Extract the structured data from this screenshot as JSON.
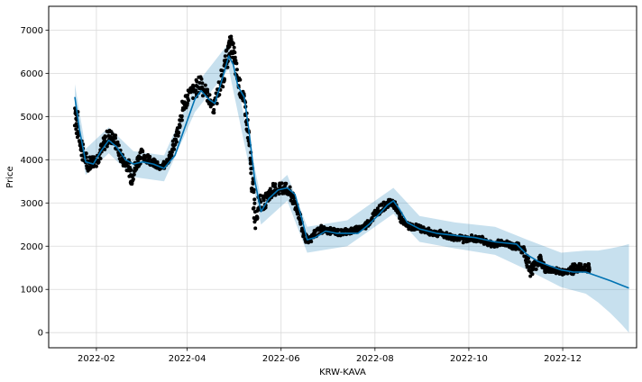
{
  "chart_data": {
    "type": "scatter",
    "xlabel": "KRW-KAVA",
    "ylabel": "Price",
    "xlim": [
      "2022-01-01",
      "2023-01-18"
    ],
    "ylim": [
      -350,
      7550
    ],
    "grid": true,
    "x_ticks": [
      {
        "date": "2022-02-01",
        "label": "2022-02"
      },
      {
        "date": "2022-04-01",
        "label": "2022-04"
      },
      {
        "date": "2022-06-01",
        "label": "2022-06"
      },
      {
        "date": "2022-08-01",
        "label": "2022-08"
      },
      {
        "date": "2022-10-01",
        "label": "2022-10"
      },
      {
        "date": "2022-12-01",
        "label": "2022-12"
      }
    ],
    "y_ticks": [
      0,
      1000,
      2000,
      3000,
      4000,
      5000,
      6000,
      7000
    ],
    "colors": {
      "observed": "#000000",
      "forecast_line": "#0072B2",
      "uncertainty_band": "#0072B2",
      "grid": "#d9d9d9",
      "frame": "#000000"
    },
    "series": [
      {
        "kind": "observed",
        "points": [
          [
            "2022-01-18",
            5200,
            1000
          ],
          [
            "2022-01-20",
            4700,
            600
          ],
          [
            "2022-01-23",
            4200,
            450
          ],
          [
            "2022-01-26",
            3900,
            350
          ],
          [
            "2022-01-29",
            3950,
            300
          ],
          [
            "2022-02-01",
            4000,
            300
          ],
          [
            "2022-02-04",
            4200,
            350
          ],
          [
            "2022-02-07",
            4450,
            400
          ],
          [
            "2022-02-10",
            4550,
            350
          ],
          [
            "2022-02-13",
            4450,
            300
          ],
          [
            "2022-02-16",
            4150,
            300
          ],
          [
            "2022-02-19",
            3950,
            250
          ],
          [
            "2022-02-22",
            3850,
            300
          ],
          [
            "2022-02-24",
            3600,
            450
          ],
          [
            "2022-02-27",
            3900,
            300
          ],
          [
            "2022-03-02",
            4100,
            300
          ],
          [
            "2022-03-06",
            4050,
            250
          ],
          [
            "2022-03-10",
            3950,
            200
          ],
          [
            "2022-03-14",
            3800,
            150
          ],
          [
            "2022-03-18",
            3900,
            150
          ],
          [
            "2022-03-21",
            4100,
            200
          ],
          [
            "2022-03-24",
            4400,
            250
          ],
          [
            "2022-03-27",
            4800,
            300
          ],
          [
            "2022-03-30",
            5300,
            450
          ],
          [
            "2022-04-02",
            5500,
            350
          ],
          [
            "2022-04-06",
            5600,
            350
          ],
          [
            "2022-04-10",
            5800,
            500
          ],
          [
            "2022-04-14",
            5500,
            350
          ],
          [
            "2022-04-18",
            5200,
            300
          ],
          [
            "2022-04-22",
            5700,
            450
          ],
          [
            "2022-04-25",
            6000,
            450
          ],
          [
            "2022-04-27",
            6400,
            500
          ],
          [
            "2022-04-29",
            6700,
            450
          ],
          [
            "2022-05-01",
            6500,
            400
          ],
          [
            "2022-05-03",
            6000,
            450
          ],
          [
            "2022-05-06",
            5600,
            400
          ],
          [
            "2022-05-09",
            5200,
            350
          ],
          [
            "2022-05-11",
            4400,
            500
          ],
          [
            "2022-05-13",
            3600,
            700
          ],
          [
            "2022-05-15",
            2700,
            600
          ],
          [
            "2022-05-18",
            3000,
            400
          ],
          [
            "2022-05-21",
            3000,
            300
          ],
          [
            "2022-05-24",
            3200,
            300
          ],
          [
            "2022-05-27",
            3300,
            300
          ],
          [
            "2022-05-31",
            3350,
            350
          ],
          [
            "2022-06-03",
            3350,
            300
          ],
          [
            "2022-06-07",
            3200,
            300
          ],
          [
            "2022-06-10",
            3000,
            300
          ],
          [
            "2022-06-13",
            2700,
            300
          ],
          [
            "2022-06-16",
            2250,
            200
          ],
          [
            "2022-06-19",
            2100,
            150
          ],
          [
            "2022-06-23",
            2300,
            200
          ],
          [
            "2022-06-27",
            2400,
            200
          ],
          [
            "2022-07-01",
            2350,
            150
          ],
          [
            "2022-07-05",
            2350,
            150
          ],
          [
            "2022-07-09",
            2300,
            150
          ],
          [
            "2022-07-13",
            2350,
            150
          ],
          [
            "2022-07-17",
            2350,
            150
          ],
          [
            "2022-07-21",
            2400,
            150
          ],
          [
            "2022-07-25",
            2450,
            150
          ],
          [
            "2022-07-29",
            2600,
            200
          ],
          [
            "2022-08-02",
            2800,
            200
          ],
          [
            "2022-08-06",
            2900,
            200
          ],
          [
            "2022-08-10",
            3000,
            150
          ],
          [
            "2022-08-13",
            3000,
            150
          ],
          [
            "2022-08-16",
            2800,
            200
          ],
          [
            "2022-08-19",
            2550,
            150
          ],
          [
            "2022-08-23",
            2450,
            150
          ],
          [
            "2022-08-27",
            2450,
            150
          ],
          [
            "2022-08-31",
            2400,
            150
          ],
          [
            "2022-09-04",
            2350,
            150
          ],
          [
            "2022-09-08",
            2300,
            150
          ],
          [
            "2022-09-12",
            2300,
            150
          ],
          [
            "2022-09-16",
            2250,
            150
          ],
          [
            "2022-09-20",
            2200,
            150
          ],
          [
            "2022-09-24",
            2200,
            150
          ],
          [
            "2022-09-28",
            2150,
            150
          ],
          [
            "2022-10-02",
            2200,
            150
          ],
          [
            "2022-10-06",
            2150,
            150
          ],
          [
            "2022-10-10",
            2150,
            150
          ],
          [
            "2022-10-14",
            2050,
            150
          ],
          [
            "2022-10-18",
            2050,
            150
          ],
          [
            "2022-10-22",
            2100,
            150
          ],
          [
            "2022-10-26",
            2050,
            150
          ],
          [
            "2022-10-30",
            2000,
            150
          ],
          [
            "2022-11-03",
            2000,
            150
          ],
          [
            "2022-11-07",
            1800,
            350
          ],
          [
            "2022-11-10",
            1450,
            300
          ],
          [
            "2022-11-13",
            1550,
            250
          ],
          [
            "2022-11-16",
            1700,
            300
          ],
          [
            "2022-11-19",
            1500,
            200
          ],
          [
            "2022-11-22",
            1450,
            150
          ],
          [
            "2022-11-26",
            1450,
            150
          ],
          [
            "2022-11-30",
            1400,
            150
          ],
          [
            "2022-12-04",
            1400,
            100
          ],
          [
            "2022-12-08",
            1500,
            300
          ],
          [
            "2022-12-11",
            1500,
            200
          ],
          [
            "2022-12-14",
            1500,
            150
          ],
          [
            "2022-12-18",
            1500,
            200
          ]
        ]
      },
      {
        "kind": "forecast",
        "points": [
          [
            "2022-01-18",
            5450
          ],
          [
            "2022-01-21",
            4700
          ],
          [
            "2022-01-25",
            3950
          ],
          [
            "2022-01-30",
            3900
          ],
          [
            "2022-02-04",
            4200
          ],
          [
            "2022-02-09",
            4450
          ],
          [
            "2022-02-14",
            4300
          ],
          [
            "2022-02-20",
            4000
          ],
          [
            "2022-02-25",
            3900
          ],
          [
            "2022-03-03",
            3950
          ],
          [
            "2022-03-10",
            3900
          ],
          [
            "2022-03-17",
            3800
          ],
          [
            "2022-03-24",
            4100
          ],
          [
            "2022-03-31",
            4800
          ],
          [
            "2022-04-06",
            5400
          ],
          [
            "2022-04-10",
            5600
          ],
          [
            "2022-04-15",
            5400
          ],
          [
            "2022-04-19",
            5300
          ],
          [
            "2022-04-24",
            5900
          ],
          [
            "2022-04-28",
            6400
          ],
          [
            "2022-05-01",
            6200
          ],
          [
            "2022-05-04",
            5700
          ],
          [
            "2022-05-08",
            5450
          ],
          [
            "2022-05-11",
            4700
          ],
          [
            "2022-05-15",
            3500
          ],
          [
            "2022-05-19",
            2800
          ],
          [
            "2022-05-24",
            3100
          ],
          [
            "2022-05-30",
            3300
          ],
          [
            "2022-06-05",
            3350
          ],
          [
            "2022-06-10",
            3200
          ],
          [
            "2022-06-14",
            2700
          ],
          [
            "2022-06-18",
            2150
          ],
          [
            "2022-06-23",
            2200
          ],
          [
            "2022-06-30",
            2350
          ],
          [
            "2022-07-07",
            2300
          ],
          [
            "2022-07-14",
            2300
          ],
          [
            "2022-07-21",
            2300
          ],
          [
            "2022-07-28",
            2500
          ],
          [
            "2022-08-04",
            2750
          ],
          [
            "2022-08-09",
            2950
          ],
          [
            "2022-08-13",
            3050
          ],
          [
            "2022-08-17",
            2850
          ],
          [
            "2022-08-22",
            2550
          ],
          [
            "2022-08-30",
            2400
          ],
          [
            "2022-09-10",
            2300
          ],
          [
            "2022-09-22",
            2250
          ],
          [
            "2022-10-05",
            2200
          ],
          [
            "2022-10-18",
            2100
          ],
          [
            "2022-11-01",
            2050
          ],
          [
            "2022-11-08",
            1800
          ],
          [
            "2022-11-15",
            1650
          ],
          [
            "2022-11-22",
            1550
          ],
          [
            "2022-11-30",
            1450
          ],
          [
            "2022-12-08",
            1400
          ],
          [
            "2022-12-16",
            1400
          ],
          [
            "2022-12-24",
            1300
          ],
          [
            "2023-01-01",
            1200
          ],
          [
            "2023-01-08",
            1100
          ],
          [
            "2023-01-13",
            1030
          ]
        ]
      },
      {
        "kind": "uncertainty",
        "points": [
          [
            "2022-01-18",
            5150,
            5750
          ],
          [
            "2022-01-25",
            3650,
            4250
          ],
          [
            "2022-02-09",
            4150,
            4750
          ],
          [
            "2022-02-25",
            3600,
            4200
          ],
          [
            "2022-03-17",
            3500,
            4100
          ],
          [
            "2022-04-06",
            5100,
            5700
          ],
          [
            "2022-04-28",
            6100,
            6700
          ],
          [
            "2022-05-15",
            3200,
            3800
          ],
          [
            "2022-05-19",
            2500,
            3100
          ],
          [
            "2022-06-05",
            3050,
            3650
          ],
          [
            "2022-06-18",
            1850,
            2450
          ],
          [
            "2022-07-14",
            2000,
            2600
          ],
          [
            "2022-08-13",
            2750,
            3350
          ],
          [
            "2022-08-30",
            2100,
            2700
          ],
          [
            "2022-09-22",
            1950,
            2550
          ],
          [
            "2022-10-18",
            1800,
            2450
          ],
          [
            "2022-11-08",
            1450,
            2150
          ],
          [
            "2022-11-30",
            1050,
            1850
          ],
          [
            "2022-12-16",
            900,
            1900
          ],
          [
            "2022-12-24",
            700,
            1900
          ],
          [
            "2023-01-01",
            450,
            1950
          ],
          [
            "2023-01-08",
            200,
            2000
          ],
          [
            "2023-01-13",
            0,
            2050
          ]
        ]
      }
    ]
  }
}
